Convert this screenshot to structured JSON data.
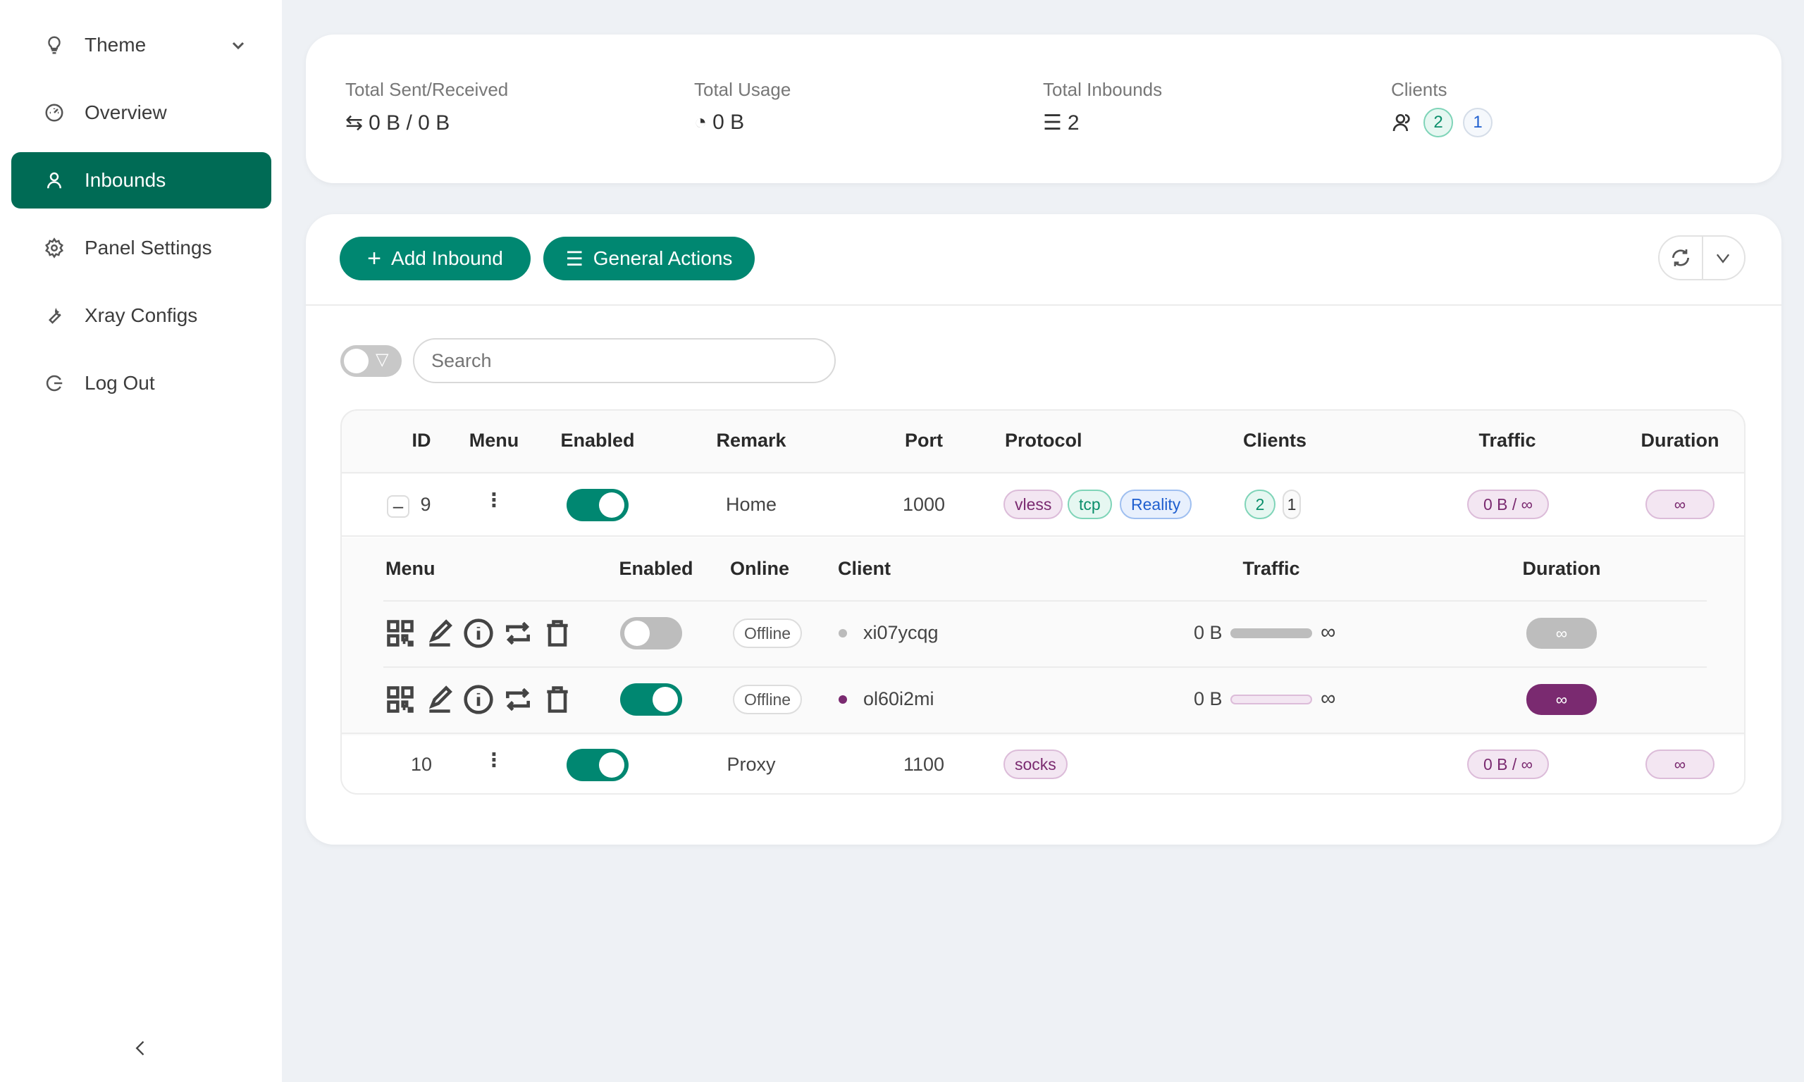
{
  "sidebar": {
    "items": [
      {
        "label": "Theme",
        "icon": "bulb-icon"
      },
      {
        "label": "Overview",
        "icon": "dashboard-icon"
      },
      {
        "label": "Inbounds",
        "icon": "user-icon",
        "active": true
      },
      {
        "label": "Panel Settings",
        "icon": "gear-icon"
      },
      {
        "label": "Xray Configs",
        "icon": "tool-icon"
      },
      {
        "label": "Log Out",
        "icon": "logout-icon"
      }
    ]
  },
  "stats": {
    "sent_received": {
      "label": "Total Sent/Received",
      "value": "0 B / 0 B"
    },
    "usage": {
      "label": "Total Usage",
      "value": "0 B"
    },
    "inbounds": {
      "label": "Total Inbounds",
      "value": "2"
    },
    "clients": {
      "label": "Clients",
      "total": "2",
      "other": "1"
    }
  },
  "toolbar": {
    "add_label": "Add Inbound",
    "general_label": "General Actions"
  },
  "search": {
    "placeholder": "Search",
    "value": ""
  },
  "table": {
    "headers": [
      "ID",
      "Menu",
      "Enabled",
      "Remark",
      "Port",
      "Protocol",
      "Clients",
      "Traffic",
      "Duration"
    ],
    "rows": [
      {
        "id": "9",
        "enabled": true,
        "remark": "Home",
        "port": "1000",
        "protocol": [
          "vless",
          "tcp",
          "Reality"
        ],
        "clients": "2",
        "clients_other": "1",
        "traffic": "0 B / ∞",
        "duration": "∞"
      },
      {
        "id": "10",
        "enabled": true,
        "remark": "Proxy",
        "port": "1100",
        "protocol": [
          "socks"
        ],
        "traffic": "0 B / ∞",
        "duration": "∞"
      }
    ],
    "sub_headers": [
      "Menu",
      "Enabled",
      "Online",
      "Client",
      "Traffic",
      "Duration"
    ],
    "clients": [
      {
        "enabled": false,
        "online": "Offline",
        "name": "xi07ycqg",
        "traffic_used": "0 B",
        "traffic_limit": "∞",
        "duration": "∞"
      },
      {
        "enabled": true,
        "online": "Offline",
        "name": "ol60i2mi",
        "traffic_used": "0 B",
        "traffic_limit": "∞",
        "duration": "∞"
      }
    ]
  },
  "colors": {
    "primary": "#008771",
    "active_nav": "#006b55",
    "accent_purple": "#7a2a70"
  }
}
